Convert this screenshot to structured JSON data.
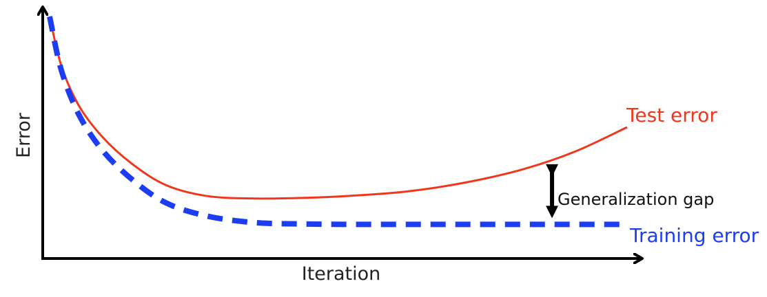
{
  "chart_data": {
    "type": "line",
    "xlabel": "Iteration",
    "ylabel": "Error",
    "grid": false,
    "colors": {
      "test": "#f2361b",
      "training": "#1d3df2",
      "axis": "#000000",
      "gap_arrow": "#000000"
    },
    "series": [
      {
        "name": "Test error",
        "style": "solid",
        "x": [
          0.0,
          0.02,
          0.05,
          0.09,
          0.14,
          0.2,
          0.27,
          0.35,
          0.43,
          0.52,
          0.62,
          0.72,
          0.82,
          0.91,
          1.0
        ],
        "y": [
          1.0,
          0.78,
          0.6,
          0.46,
          0.34,
          0.24,
          0.19,
          0.178,
          0.18,
          0.19,
          0.21,
          0.25,
          0.31,
          0.39,
          0.5
        ]
      },
      {
        "name": "Training error",
        "style": "dashed",
        "x": [
          0.0,
          0.02,
          0.05,
          0.09,
          0.14,
          0.2,
          0.27,
          0.35,
          0.43,
          0.52,
          0.62,
          0.72,
          0.82,
          0.91,
          1.0
        ],
        "y": [
          1.0,
          0.76,
          0.56,
          0.4,
          0.27,
          0.16,
          0.1,
          0.07,
          0.063,
          0.061,
          0.061,
          0.061,
          0.061,
          0.061,
          0.061
        ]
      }
    ],
    "annotation": {
      "label": "Generalization gap",
      "x": 0.87
    }
  }
}
